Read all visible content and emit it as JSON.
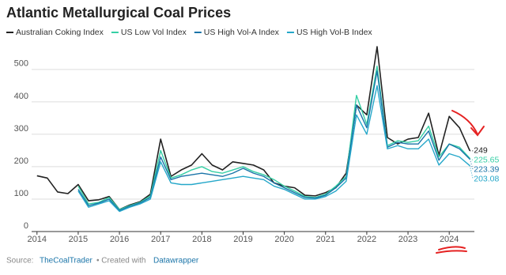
{
  "chart_data": {
    "type": "line",
    "title": "Atlantic Metallurgical Coal Prices",
    "source_prefix": "Source:",
    "source": "TheCoalTrader",
    "credit_prefix": "• Created with",
    "credit": "Datawrapper",
    "x": [
      2014,
      2014.25,
      2014.5,
      2014.75,
      2015,
      2015.25,
      2015.5,
      2015.75,
      2016,
      2016.25,
      2016.5,
      2016.75,
      2017,
      2017.25,
      2017.5,
      2017.75,
      2018,
      2018.25,
      2018.5,
      2018.75,
      2019,
      2019.25,
      2019.5,
      2019.75,
      2020,
      2020.25,
      2020.5,
      2020.75,
      2021,
      2021.25,
      2021.5,
      2021.75,
      2022,
      2022.25,
      2022.5,
      2022.75,
      2023,
      2023.25,
      2023.5,
      2023.75,
      2024,
      2024.25,
      2024.5
    ],
    "series": [
      {
        "name": "Australian Coking Index",
        "color": "#222222",
        "values": [
          172,
          165,
          122,
          117,
          145,
          95,
          98,
          108,
          68,
          82,
          92,
          115,
          285,
          170,
          190,
          205,
          240,
          205,
          190,
          215,
          210,
          205,
          190,
          150,
          140,
          135,
          112,
          110,
          120,
          135,
          180,
          390,
          360,
          570,
          290,
          270,
          285,
          290,
          365,
          235,
          355,
          320,
          249
        ]
      },
      {
        "name": "US Low Vol Index",
        "color": "#35cfa5",
        "values": [
          null,
          null,
          null,
          null,
          140,
          85,
          90,
          105,
          68,
          80,
          90,
          110,
          250,
          165,
          175,
          190,
          200,
          185,
          180,
          190,
          200,
          185,
          175,
          160,
          140,
          125,
          108,
          105,
          115,
          140,
          170,
          420,
          330,
          510,
          265,
          280,
          275,
          280,
          325,
          230,
          270,
          260,
          225.65
        ]
      },
      {
        "name": "US High Vol-A Index",
        "color": "#1a74a8",
        "values": [
          null,
          null,
          null,
          null,
          130,
          80,
          88,
          100,
          65,
          78,
          88,
          105,
          230,
          160,
          170,
          175,
          180,
          175,
          170,
          180,
          195,
          180,
          170,
          150,
          135,
          120,
          105,
          103,
          112,
          135,
          165,
          390,
          320,
          495,
          260,
          275,
          270,
          270,
          310,
          220,
          270,
          255,
          223.39
        ]
      },
      {
        "name": "US High Vol-B Index",
        "color": "#25a7c9",
        "values": [
          null,
          null,
          null,
          null,
          125,
          75,
          85,
          95,
          62,
          75,
          85,
          100,
          215,
          150,
          145,
          145,
          150,
          155,
          160,
          165,
          170,
          165,
          160,
          140,
          130,
          115,
          100,
          100,
          108,
          125,
          155,
          360,
          300,
          450,
          255,
          265,
          255,
          255,
          285,
          205,
          240,
          230,
          203.08
        ]
      }
    ],
    "xlim": [
      2013.87,
      2024.61
    ],
    "xticks": [
      2014,
      2015,
      2016,
      2017,
      2018,
      2019,
      2020,
      2021,
      2022,
      2023,
      2024
    ],
    "ylim": [
      0,
      580
    ],
    "yticks": [
      0,
      100,
      200,
      300,
      400,
      500
    ],
    "grid": true
  }
}
